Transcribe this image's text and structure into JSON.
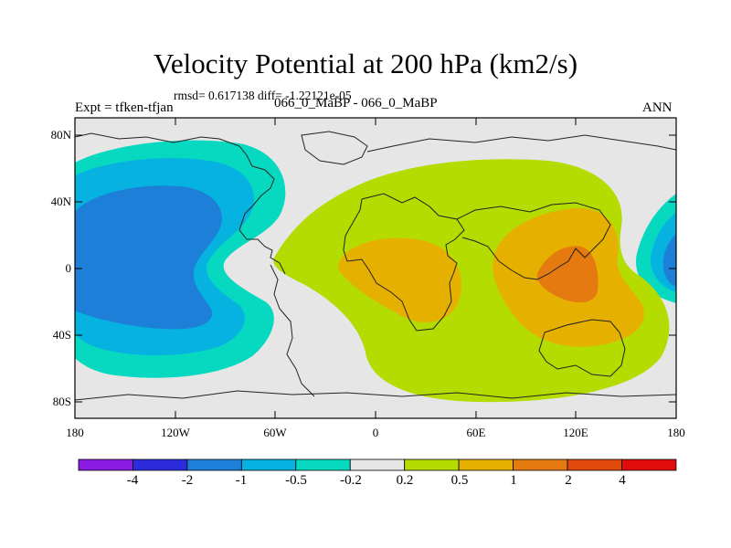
{
  "title": "Velocity Potential at 200 hPa (km2/s)",
  "stats": "rmsd= 0.617138  diff= -1.22121e-05",
  "expt_label": "Expt = tfken-tfjan",
  "experiment_names": "066_0_MaBP - 066_0_MaBP",
  "season": "ANN",
  "latitude_ticks": [
    "80N",
    "40N",
    "0",
    "40S",
    "80S"
  ],
  "longitude_ticks": [
    "180",
    "120W",
    "60W",
    "0",
    "60E",
    "120E",
    "180"
  ],
  "colorbar": {
    "labels": [
      "-4",
      "-2",
      "-1",
      "-0.5",
      "-0.2",
      "0.2",
      "0.5",
      "1",
      "2",
      "4"
    ],
    "colors": [
      "#8a1be0",
      "#2c2cdc",
      "#1e7fd8",
      "#06b2e0",
      "#07d8c0",
      "#e6e6e6",
      "#b4dc00",
      "#e6b000",
      "#e47a10",
      "#e04a0c",
      "#e00c0c"
    ]
  },
  "colors": {
    "neutral": "#e6e6e6",
    "coast": "#222222"
  }
}
